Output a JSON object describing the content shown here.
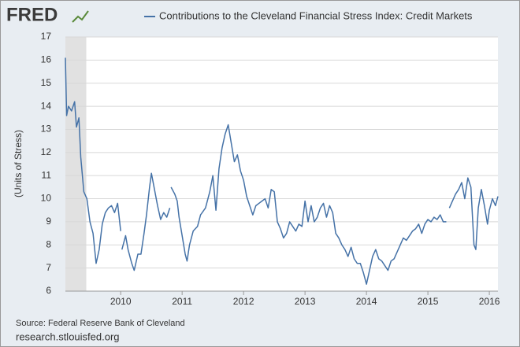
{
  "logo": "FRED",
  "source": "Source: Federal Reserve Bank of Cleveland",
  "site": "research.stlouisfed.org",
  "chart_data": {
    "type": "line",
    "ylabel": "(Units of Stress)",
    "x": [
      2009.1,
      2009.12,
      2009.15,
      2009.2,
      2009.25,
      2009.28,
      2009.32,
      2009.35,
      2009.4,
      2009.45,
      2009.5,
      2009.55,
      2009.6,
      2009.65,
      2009.7,
      2009.75,
      2009.8,
      2009.85,
      2009.9,
      2009.95,
      2010.0,
      2010.01,
      2010.02,
      2010.08,
      2010.12,
      2010.18,
      2010.22,
      2010.28,
      2010.33,
      2010.38,
      2010.42,
      2010.47,
      2010.5,
      2010.55,
      2010.6,
      2010.65,
      2010.7,
      2010.75,
      2010.8,
      2010.81,
      2010.82,
      2010.88,
      2010.92,
      2010.95,
      2011.0,
      2011.05,
      2011.08,
      2011.12,
      2011.18,
      2011.25,
      2011.3,
      2011.38,
      2011.45,
      2011.5,
      2011.55,
      2011.6,
      2011.65,
      2011.7,
      2011.75,
      2011.8,
      2011.85,
      2011.9,
      2011.95,
      2012.0,
      2012.05,
      2012.1,
      2012.15,
      2012.2,
      2012.25,
      2012.3,
      2012.35,
      2012.4,
      2012.45,
      2012.5,
      2012.55,
      2012.6,
      2012.65,
      2012.7,
      2012.75,
      2012.8,
      2012.85,
      2012.9,
      2012.95,
      2013.0,
      2013.05,
      2013.1,
      2013.15,
      2013.2,
      2013.25,
      2013.3,
      2013.35,
      2013.4,
      2013.45,
      2013.5,
      2013.55,
      2013.6,
      2013.65,
      2013.7,
      2013.75,
      2013.8,
      2013.85,
      2013.9,
      2013.95,
      2014.0,
      2014.05,
      2014.1,
      2014.15,
      2014.2,
      2014.25,
      2014.3,
      2014.35,
      2014.4,
      2014.45,
      2014.5,
      2014.55,
      2014.6,
      2014.65,
      2014.7,
      2014.75,
      2014.8,
      2014.85,
      2014.9,
      2014.95,
      2015.0,
      2015.05,
      2015.1,
      2015.15,
      2015.2,
      2015.25,
      2015.3,
      2015.32,
      2015.35,
      2015.4,
      2015.45,
      2015.5,
      2015.55,
      2015.6,
      2015.65,
      2015.7,
      2015.75,
      2015.78,
      2015.82,
      2015.87,
      2015.92,
      2015.97,
      2016.0,
      2016.05,
      2016.1,
      2016.14
    ],
    "series": [
      {
        "name": "Contributions to the Cleveland Financial Stress Index: Credit Markets",
        "color": "#4572a7",
        "values": [
          16.1,
          13.6,
          14.0,
          13.8,
          14.2,
          13.1,
          13.5,
          11.8,
          10.3,
          10.0,
          9.0,
          8.5,
          7.2,
          7.8,
          8.9,
          9.4,
          9.6,
          9.7,
          9.4,
          9.8,
          8.6,
          null,
          7.8,
          8.4,
          7.8,
          7.2,
          6.9,
          7.6,
          7.6,
          8.5,
          9.3,
          10.5,
          11.1,
          10.4,
          9.7,
          9.1,
          9.4,
          9.2,
          9.6,
          null,
          10.5,
          10.2,
          9.9,
          9.2,
          8.4,
          7.6,
          7.3,
          8.0,
          8.6,
          8.8,
          9.3,
          9.6,
          10.3,
          11.0,
          9.5,
          11.3,
          12.2,
          12.8,
          13.2,
          12.4,
          11.6,
          11.9,
          11.2,
          10.8,
          10.1,
          9.7,
          9.3,
          9.7,
          9.8,
          9.9,
          10.0,
          9.6,
          10.4,
          10.3,
          9.0,
          8.7,
          8.3,
          8.5,
          9.0,
          8.8,
          8.6,
          8.9,
          8.8,
          9.9,
          9.0,
          9.7,
          9.0,
          9.2,
          9.6,
          9.8,
          9.2,
          9.7,
          9.4,
          8.5,
          8.3,
          8.0,
          7.8,
          7.5,
          7.9,
          7.4,
          7.2,
          7.2,
          6.8,
          6.3,
          6.9,
          7.5,
          7.8,
          7.4,
          7.3,
          7.1,
          6.9,
          7.3,
          7.4,
          7.7,
          8.0,
          8.3,
          8.2,
          8.4,
          8.6,
          8.7,
          8.9,
          8.5,
          8.9,
          9.1,
          9.0,
          9.2,
          9.1,
          9.3,
          9.0,
          9.0,
          null,
          9.6,
          9.9,
          10.2,
          10.4,
          10.7,
          10.0,
          10.9,
          10.5,
          8.0,
          7.8,
          9.6,
          10.4,
          9.7,
          8.9,
          9.5,
          10.0,
          9.7,
          10.1
        ]
      }
    ],
    "xlim": [
      2009.1,
      2016.14
    ],
    "ylim": [
      6,
      17
    ],
    "xticks": [
      2010,
      2011,
      2012,
      2013,
      2014,
      2015,
      2016
    ],
    "yticks": [
      6,
      7,
      8,
      9,
      10,
      11,
      12,
      13,
      14,
      15,
      16,
      17
    ],
    "grid": true,
    "shaded_ranges": [
      [
        2009.1,
        2009.44
      ]
    ],
    "shade_color": "#e1e1e1"
  }
}
